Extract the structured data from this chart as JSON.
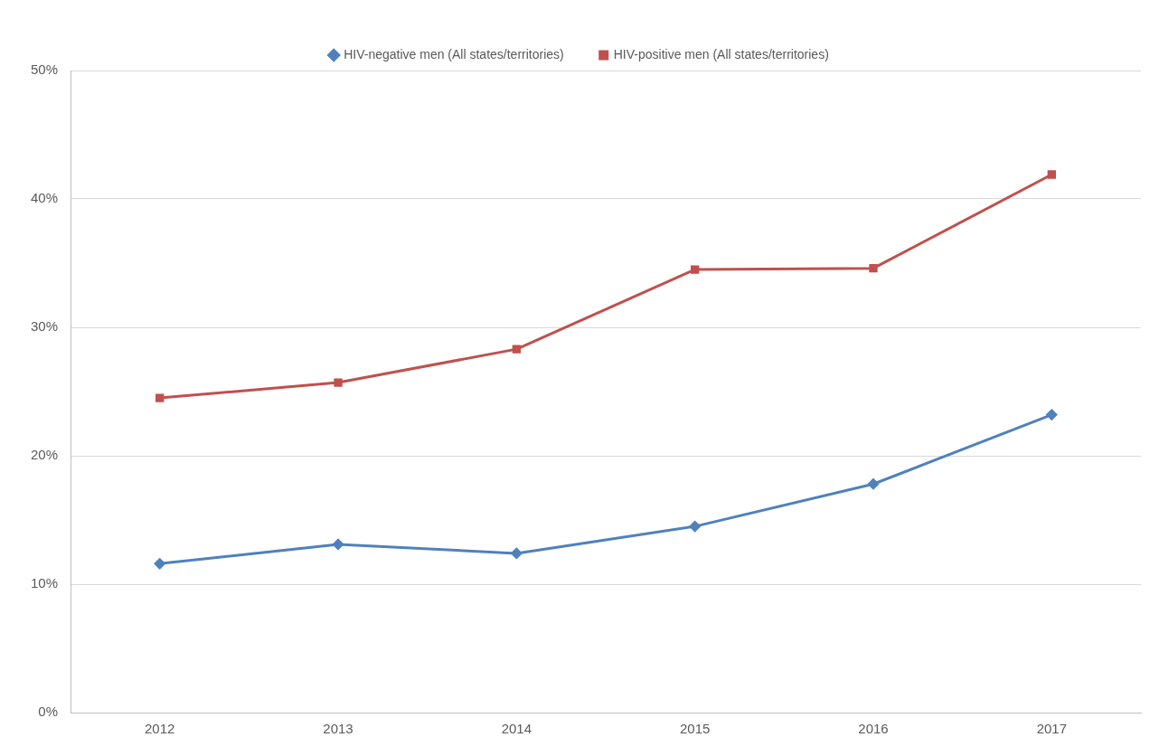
{
  "chart_data": {
    "type": "line",
    "categories": [
      "2012",
      "2013",
      "2014",
      "2015",
      "2016",
      "2017"
    ],
    "series": [
      {
        "name": "HIV-negative men (All states/territories)",
        "color": "#4f81bd",
        "marker": "diamond",
        "values": [
          11.6,
          13.1,
          12.4,
          14.5,
          17.8,
          23.2
        ]
      },
      {
        "name": "HIV-positive men (All states/territories)",
        "color": "#c0504d",
        "marker": "square",
        "values": [
          24.5,
          25.7,
          28.3,
          34.5,
          34.6,
          41.9
        ]
      }
    ],
    "ylim": [
      0,
      50
    ],
    "yticks": [
      {
        "value": 0,
        "label": "0%"
      },
      {
        "value": 10,
        "label": "10%"
      },
      {
        "value": 20,
        "label": "20%"
      },
      {
        "value": 30,
        "label": "30%"
      },
      {
        "value": 40,
        "label": "40%"
      },
      {
        "value": 50,
        "label": "50%"
      }
    ],
    "grid": "y",
    "legend": "top",
    "line_style": "solid"
  }
}
